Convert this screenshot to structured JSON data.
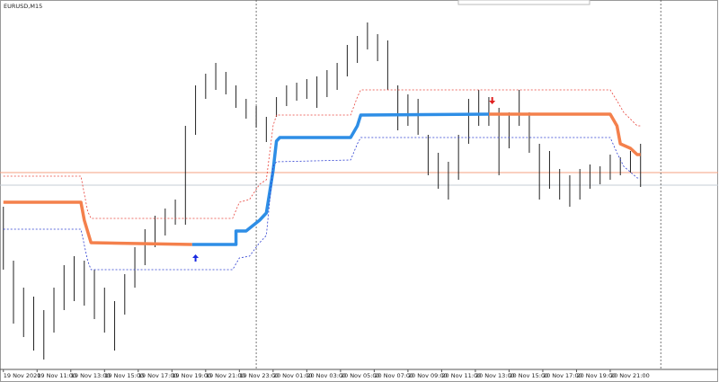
{
  "chart_data": {
    "type": "ohlc",
    "title": "EURUSD,M15",
    "xlim": [
      -1,
      212
    ],
    "ylim": [
      0,
      410
    ],
    "xticks": [
      {
        "value": 0,
        "label": "19 Nov 2020"
      },
      {
        "value": 10,
        "label": "19 Nov 11:00"
      },
      {
        "value": 20,
        "label": "19 Nov 13:00"
      },
      {
        "value": 30,
        "label": "19 Nov 15:00"
      },
      {
        "value": 40,
        "label": "19 Nov 17:00"
      },
      {
        "value": 50,
        "label": "19 Nov 19:00"
      },
      {
        "value": 60,
        "label": "19 Nov 21:00"
      },
      {
        "value": 70,
        "label": "19 Nov 23:00"
      },
      {
        "value": 80,
        "label": "20 Nov 01:00"
      },
      {
        "value": 90,
        "label": "20 Nov 03:00"
      },
      {
        "value": 100,
        "label": "20 Nov 05:00"
      },
      {
        "value": 110,
        "label": "20 Nov 07:00"
      },
      {
        "value": 120,
        "label": "20 Nov 09:00"
      },
      {
        "value": 130,
        "label": "20 Nov 11:00"
      },
      {
        "value": 140,
        "label": "20 Nov 13:00"
      },
      {
        "value": 150,
        "label": "20 Nov 15:00"
      },
      {
        "value": 160,
        "label": "20 Nov 17:00"
      },
      {
        "value": 170,
        "label": "20 Nov 19:00"
      },
      {
        "value": 180,
        "label": "20 Nov 21:00"
      }
    ],
    "bars": {
      "color": "#222222",
      "x": [
        0,
        3,
        6,
        9,
        12,
        15,
        18,
        21,
        24,
        27,
        30,
        33,
        36,
        39,
        42,
        45,
        48,
        51,
        54,
        57,
        60,
        63,
        66,
        69,
        72,
        75,
        78,
        81,
        84,
        87,
        90,
        93,
        96,
        99,
        102,
        105,
        108,
        111,
        114,
        117,
        120,
        123,
        126,
        129,
        132,
        135,
        138,
        141,
        144,
        147,
        150,
        153,
        156,
        159,
        162,
        165,
        168,
        171,
        174,
        177,
        180,
        183,
        186,
        189
      ],
      "high": [
        180,
        120,
        90,
        80,
        65,
        90,
        115,
        125,
        120,
        110,
        90,
        75,
        105,
        135,
        155,
        170,
        178,
        188,
        270,
        315,
        328,
        340,
        330,
        315,
        300,
        292,
        280,
        302,
        315,
        318,
        322,
        325,
        332,
        340,
        360,
        370,
        385,
        372,
        365,
        315,
        305,
        300,
        260,
        240,
        230,
        260,
        300,
        310,
        302,
        290,
        285,
        310,
        285,
        250,
        242,
        222,
        215,
        222,
        227,
        225,
        238,
        235,
        242,
        250
      ],
      "low": [
        110,
        50,
        35,
        20,
        10,
        40,
        65,
        75,
        70,
        55,
        40,
        20,
        60,
        90,
        115,
        135,
        148,
        160,
        160,
        260,
        300,
        310,
        305,
        290,
        278,
        268,
        252,
        280,
        292,
        298,
        300,
        290,
        302,
        310,
        325,
        340,
        355,
        342,
        310,
        265,
        270,
        260,
        215,
        200,
        188,
        210,
        250,
        270,
        270,
        215,
        245,
        270,
        240,
        188,
        200,
        188,
        180,
        188,
        200,
        205,
        210,
        215,
        218,
        202
      ]
    },
    "lines": [
      {
        "color": "#f4804c",
        "width": 3.5,
        "dash": false,
        "x": [
          0,
          23,
          24,
          26,
          56,
          100,
          144,
          180,
          182,
          183,
          186,
          188,
          189
        ],
        "values": [
          185,
          185,
          165,
          140,
          138,
          null,
          283,
          283,
          270,
          250,
          245,
          238,
          238
        ]
      },
      {
        "color": "#2e8ee6",
        "width": 3.5,
        "dash": false,
        "x": [
          56,
          69,
          69,
          72,
          76,
          78,
          80,
          81,
          82,
          103,
          105,
          106,
          144
        ],
        "values": [
          138,
          138,
          153,
          153,
          165,
          173,
          220,
          253,
          257,
          257,
          270,
          282,
          283
        ]
      },
      {
        "color": "#e8423a",
        "width": 0.8,
        "dash": true,
        "x": [
          0,
          23,
          25,
          26,
          68,
          70,
          73,
          76,
          78,
          80,
          81,
          103,
          105,
          106,
          180,
          182,
          184,
          188,
          189
        ],
        "values": [
          214,
          214,
          175,
          167,
          167,
          185,
          188,
          205,
          210,
          270,
          282,
          282,
          302,
          310,
          310,
          298,
          285,
          270,
          270
        ]
      },
      {
        "color": "#2a3bd0",
        "width": 0.8,
        "dash": true,
        "x": [
          0,
          23,
          25,
          26,
          68,
          70,
          73,
          76,
          78,
          80,
          81,
          103,
          105,
          106,
          180,
          182,
          184,
          188,
          189
        ],
        "values": [
          155,
          155,
          120,
          110,
          110,
          123,
          125,
          140,
          148,
          225,
          230,
          232,
          250,
          257,
          257,
          240,
          225,
          212,
          212
        ]
      }
    ],
    "hlines": [
      {
        "value": 218,
        "color": "#f5a080"
      },
      {
        "value": 204,
        "color": "#c4ccd4"
      }
    ],
    "vlines": [
      75,
      195
    ],
    "arrows": [
      {
        "x": 57,
        "value": 123,
        "direction": "up",
        "color": "#1a2be0"
      },
      {
        "x": 145,
        "value": 298,
        "direction": "down",
        "color": "#e02020"
      }
    ]
  }
}
